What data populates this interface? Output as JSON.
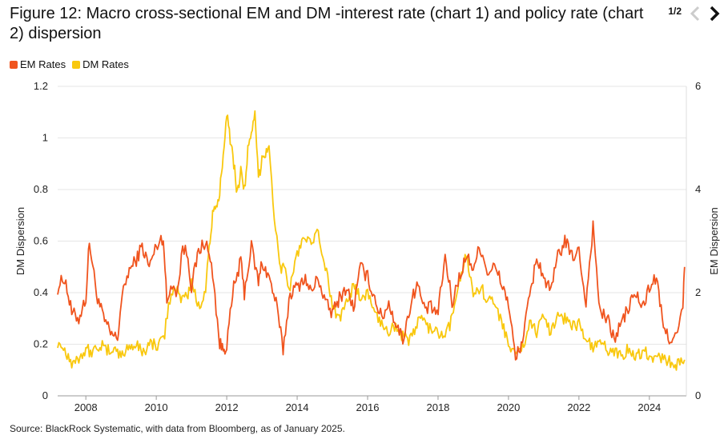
{
  "header": {
    "title": "Figure 12: Macro cross-sectional EM and DM -interest rate (chart 1) and policy rate (chart 2) dispersion",
    "page_indicator": "1/2"
  },
  "colors": {
    "em": "#F0541E",
    "dm": "#F9C80E",
    "grid": "#e6e6e6",
    "text": "#222222"
  },
  "icons": {
    "prev": "chevron-left-icon",
    "next": "chevron-right-icon"
  },
  "footer": {
    "source": "Source: BlackRock Systematic, with data from Bloomberg, as of January 2025."
  },
  "chart_data": {
    "type": "line",
    "title": "",
    "xlabel": "",
    "ylabel_left": "DM Dispersion",
    "ylabel_right": "EM Dispersion",
    "xlim": [
      2007.2,
      2025.05
    ],
    "ylim_left": [
      0,
      1.2
    ],
    "ylim_right": [
      0,
      6
    ],
    "x_ticks": [
      "2008",
      "2010",
      "2012",
      "2014",
      "2016",
      "2018",
      "2020",
      "2022",
      "2024"
    ],
    "y_ticks_left": [
      "0",
      "0.2",
      "0.4",
      "0.6",
      "0.8",
      "1",
      "1.2"
    ],
    "y_ticks_right": [
      "0",
      "2",
      "4",
      "6"
    ],
    "grid": true,
    "legend_position": "top-left",
    "series": [
      {
        "name": "EM Rates",
        "axis": "right",
        "x": [
          2007.2,
          2007.4,
          2007.6,
          2007.8,
          2008.0,
          2008.1,
          2008.3,
          2008.5,
          2008.7,
          2008.9,
          2009.0,
          2009.2,
          2009.4,
          2009.6,
          2009.8,
          2010.0,
          2010.2,
          2010.3,
          2010.45,
          2010.6,
          2010.75,
          2010.9,
          2011.0,
          2011.2,
          2011.4,
          2011.6,
          2011.8,
          2011.9,
          2012.0,
          2012.2,
          2012.4,
          2012.5,
          2012.7,
          2012.9,
          2013.0,
          2013.2,
          2013.4,
          2013.6,
          2013.8,
          2014.0,
          2014.2,
          2014.4,
          2014.6,
          2014.8,
          2015.0,
          2015.2,
          2015.4,
          2015.6,
          2015.8,
          2016.0,
          2016.2,
          2016.4,
          2016.6,
          2016.8,
          2017.0,
          2017.2,
          2017.4,
          2017.6,
          2017.8,
          2018.0,
          2018.2,
          2018.4,
          2018.6,
          2018.8,
          2019.0,
          2019.2,
          2019.4,
          2019.6,
          2019.8,
          2020.0,
          2020.2,
          2020.4,
          2020.6,
          2020.8,
          2021.0,
          2021.2,
          2021.4,
          2021.6,
          2021.8,
          2022.0,
          2022.2,
          2022.4,
          2022.6,
          2022.8,
          2023.0,
          2023.2,
          2023.4,
          2023.6,
          2023.8,
          2024.0,
          2024.2,
          2024.4,
          2024.6,
          2024.8,
          2024.95,
          2025.0
        ],
        "values": [
          2.1,
          2.3,
          1.6,
          1.5,
          1.9,
          3.0,
          2.0,
          1.5,
          1.2,
          1.1,
          1.8,
          2.4,
          2.6,
          2.9,
          2.5,
          2.9,
          3.1,
          1.8,
          2.2,
          2.0,
          2.9,
          2.7,
          2.1,
          2.8,
          3.0,
          2.4,
          1.0,
          0.9,
          1.0,
          2.1,
          2.6,
          2.0,
          2.9,
          2.2,
          2.6,
          2.3,
          1.8,
          0.9,
          2.0,
          2.1,
          2.3,
          2.0,
          2.3,
          1.8,
          1.6,
          1.9,
          2.1,
          1.7,
          2.5,
          2.3,
          1.9,
          1.5,
          1.8,
          1.4,
          1.1,
          1.7,
          2.2,
          1.7,
          1.7,
          1.6,
          2.7,
          1.8,
          2.3,
          2.7,
          2.5,
          2.9,
          2.4,
          2.5,
          2.2,
          1.8,
          0.7,
          1.1,
          1.9,
          2.7,
          2.3,
          2.0,
          2.7,
          3.0,
          2.7,
          2.8,
          1.8,
          3.3,
          1.6,
          1.5,
          1.1,
          1.4,
          1.7,
          2.0,
          1.7,
          2.1,
          2.3,
          1.3,
          1.1,
          1.2,
          1.7,
          2.5
        ]
      },
      {
        "name": "DM Rates",
        "axis": "left",
        "x": [
          2007.2,
          2007.4,
          2007.6,
          2007.8,
          2008.0,
          2008.2,
          2008.4,
          2008.6,
          2008.8,
          2009.0,
          2009.2,
          2009.4,
          2009.6,
          2009.8,
          2010.0,
          2010.2,
          2010.35,
          2010.5,
          2010.7,
          2010.9,
          2011.0,
          2011.2,
          2011.4,
          2011.5,
          2011.6,
          2011.7,
          2011.8,
          2011.9,
          2012.0,
          2012.1,
          2012.2,
          2012.3,
          2012.4,
          2012.5,
          2012.6,
          2012.7,
          2012.8,
          2012.9,
          2013.0,
          2013.1,
          2013.2,
          2013.35,
          2013.5,
          2013.6,
          2013.8,
          2014.0,
          2014.2,
          2014.4,
          2014.6,
          2014.8,
          2015.0,
          2015.2,
          2015.4,
          2015.6,
          2015.8,
          2016.0,
          2016.2,
          2016.4,
          2016.6,
          2016.8,
          2017.0,
          2017.2,
          2017.4,
          2017.6,
          2017.8,
          2018.0,
          2018.2,
          2018.4,
          2018.6,
          2018.8,
          2019.0,
          2019.2,
          2019.4,
          2019.6,
          2019.8,
          2020.0,
          2020.2,
          2020.4,
          2020.6,
          2020.8,
          2021.0,
          2021.2,
          2021.4,
          2021.6,
          2021.8,
          2022.0,
          2022.2,
          2022.4,
          2022.6,
          2022.8,
          2023.0,
          2023.2,
          2023.4,
          2023.6,
          2023.8,
          2024.0,
          2024.2,
          2024.4,
          2024.6,
          2024.8,
          2025.0
        ],
        "values": [
          0.21,
          0.18,
          0.13,
          0.15,
          0.18,
          0.17,
          0.2,
          0.17,
          0.19,
          0.15,
          0.19,
          0.2,
          0.17,
          0.2,
          0.2,
          0.21,
          0.35,
          0.42,
          0.38,
          0.39,
          0.45,
          0.34,
          0.42,
          0.57,
          0.7,
          0.72,
          0.78,
          0.95,
          1.1,
          1.0,
          0.9,
          0.78,
          0.88,
          0.8,
          0.95,
          1.0,
          1.09,
          0.84,
          0.92,
          0.95,
          0.97,
          0.7,
          0.5,
          0.5,
          0.42,
          0.55,
          0.62,
          0.58,
          0.63,
          0.5,
          0.35,
          0.3,
          0.38,
          0.42,
          0.38,
          0.4,
          0.32,
          0.28,
          0.25,
          0.28,
          0.23,
          0.21,
          0.28,
          0.3,
          0.25,
          0.24,
          0.22,
          0.3,
          0.45,
          0.55,
          0.4,
          0.42,
          0.38,
          0.35,
          0.3,
          0.2,
          0.15,
          0.19,
          0.28,
          0.25,
          0.3,
          0.25,
          0.32,
          0.3,
          0.27,
          0.28,
          0.22,
          0.18,
          0.21,
          0.18,
          0.17,
          0.16,
          0.18,
          0.15,
          0.17,
          0.16,
          0.14,
          0.15,
          0.13,
          0.12,
          0.14
        ]
      }
    ]
  }
}
